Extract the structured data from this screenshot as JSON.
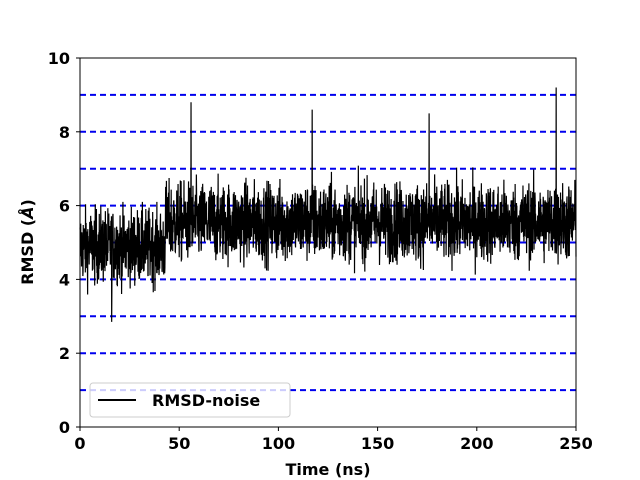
{
  "chart_data": {
    "type": "line",
    "title": "",
    "xlabel": "Time (ns)",
    "ylabel_main": "RMSD (",
    "ylabel_unit": "Å",
    "ylabel_end": ")",
    "xlim": [
      0,
      250
    ],
    "ylim": [
      0,
      10
    ],
    "xticks": [
      0,
      50,
      100,
      150,
      200,
      250
    ],
    "yticks": [
      0,
      2,
      4,
      6,
      8,
      10
    ],
    "reference_lines": {
      "y": [
        1,
        2,
        3,
        4,
        5,
        6,
        7,
        8,
        9
      ],
      "color": "#0000ee",
      "style": "dashed"
    },
    "legend": {
      "position": "lower-left"
    },
    "series": [
      {
        "name": "RMSD-noise",
        "color": "#000000",
        "description_segments": [
          {
            "x_start": 0,
            "x_end": 43,
            "mean": 4.9,
            "spread": 0.9,
            "min": 2.85,
            "max": 6.7
          },
          {
            "x_start": 43,
            "x_end": 250,
            "mean": 5.55,
            "spread": 0.95,
            "min": 3.7,
            "max": 9.2
          }
        ],
        "peaks": [
          {
            "x": 16,
            "y": 2.85
          },
          {
            "x": 56,
            "y": 8.8
          },
          {
            "x": 117,
            "y": 8.6
          },
          {
            "x": 176,
            "y": 8.5
          },
          {
            "x": 240,
            "y": 9.2
          }
        ]
      }
    ]
  }
}
